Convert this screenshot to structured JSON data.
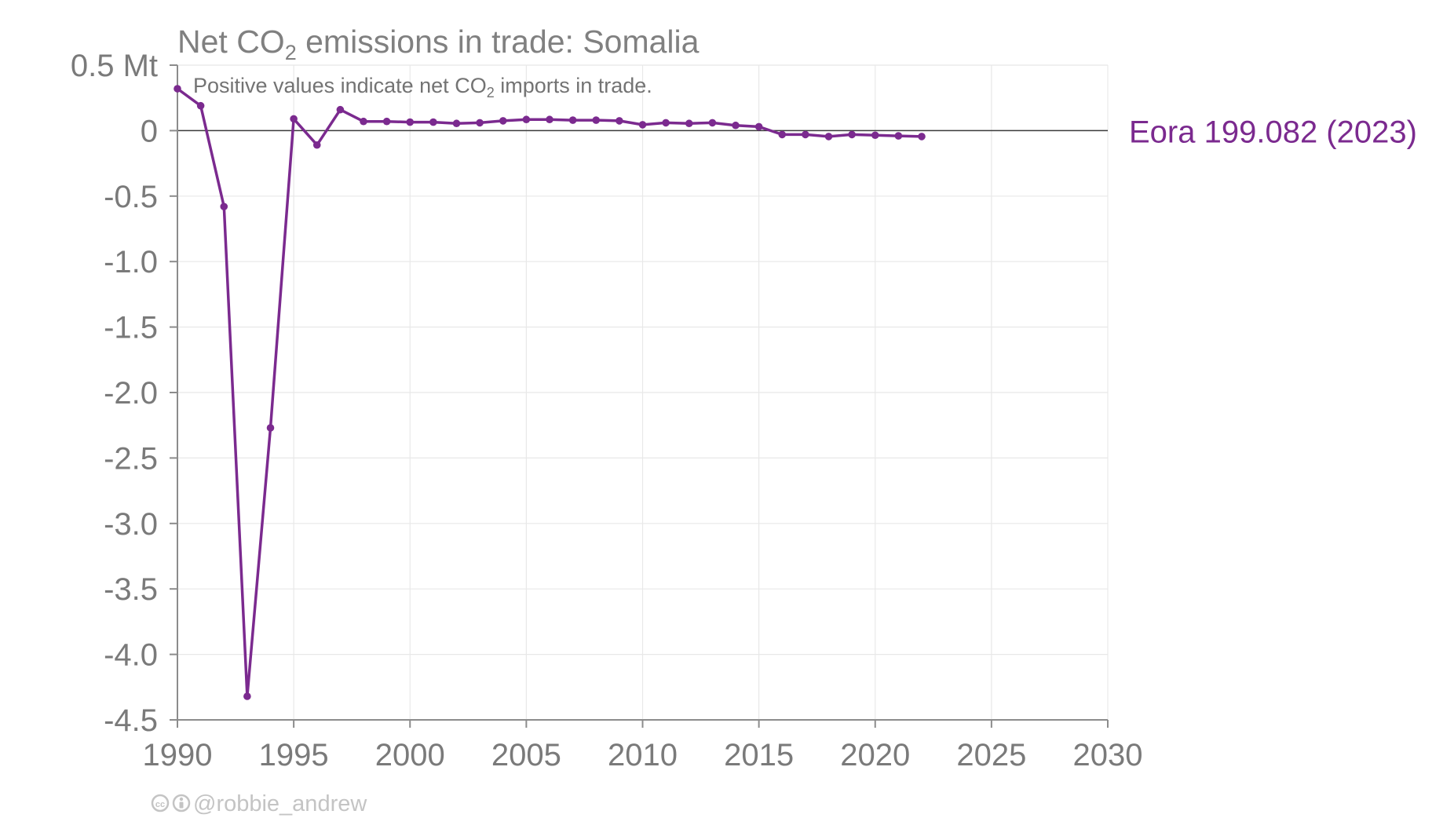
{
  "chart_data": {
    "type": "line",
    "title_prefix": "Net CO",
    "title_sub": "2",
    "title_suffix": " emissions in trade: Somalia",
    "subtitle_prefix": "Positive values indicate net CO",
    "subtitle_sub": "2",
    "subtitle_suffix": " imports in trade.",
    "y_unit_label": "0.5 Mt",
    "y_ticks": [
      0.5,
      0,
      -0.5,
      -1.0,
      -1.5,
      -2.0,
      -2.5,
      -3.0,
      -3.5,
      -4.0,
      -4.5
    ],
    "y_tick_labels": [
      "0.5 Mt",
      "0",
      "-0.5",
      "-1.0",
      "-1.5",
      "-2.0",
      "-2.5",
      "-3.0",
      "-3.5",
      "-4.0",
      "-4.5"
    ],
    "x_ticks": [
      1990,
      1995,
      2000,
      2005,
      2010,
      2015,
      2020,
      2025,
      2030
    ],
    "x_tick_labels": [
      "1990",
      "1995",
      "2000",
      "2005",
      "2010",
      "2015",
      "2020",
      "2025",
      "2030"
    ],
    "xlim": [
      1990,
      2030
    ],
    "ylim": [
      -4.5,
      0.5
    ],
    "grid": true,
    "zero_line": true,
    "series": [
      {
        "name": "Eora 199.082 (2023)",
        "color": "#7b2a8f",
        "x": [
          1990,
          1991,
          1992,
          1993,
          1994,
          1995,
          1996,
          1997,
          1998,
          1999,
          2000,
          2001,
          2002,
          2003,
          2004,
          2005,
          2006,
          2007,
          2008,
          2009,
          2010,
          2011,
          2012,
          2013,
          2014,
          2015,
          2016,
          2017,
          2018,
          2019,
          2020,
          2021,
          2022
        ],
        "y": [
          0.32,
          0.19,
          -0.58,
          -4.32,
          -2.27,
          0.09,
          -0.11,
          0.16,
          0.07,
          0.07,
          0.065,
          0.065,
          0.055,
          0.06,
          0.075,
          0.085,
          0.085,
          0.08,
          0.08,
          0.075,
          0.045,
          0.06,
          0.055,
          0.06,
          0.04,
          0.03,
          -0.03,
          -0.03,
          -0.045,
          -0.03,
          -0.035,
          -0.04,
          -0.045
        ]
      }
    ],
    "credit": "@robbie_andrew",
    "credit_icons": [
      "creative-commons-icon",
      "attribution-icon"
    ]
  }
}
